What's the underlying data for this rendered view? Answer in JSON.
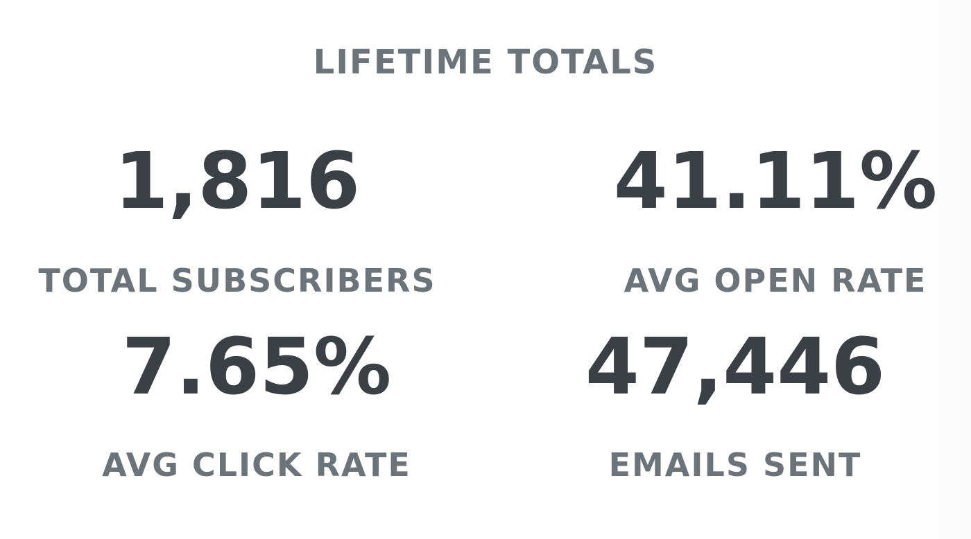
{
  "title": "LIFETIME TOTALS",
  "stats": [
    {
      "value": "1,816",
      "label": "TOTAL SUBSCRIBERS"
    },
    {
      "value": "41.11%",
      "label": "AVG OPEN RATE"
    },
    {
      "value": "7.65%",
      "label": "AVG CLICK RATE"
    },
    {
      "value": "47,446",
      "label": "EMAILS SENT"
    }
  ],
  "colors": {
    "value": "#3b4046",
    "label": "#6b737b",
    "background": "#ffffff"
  }
}
